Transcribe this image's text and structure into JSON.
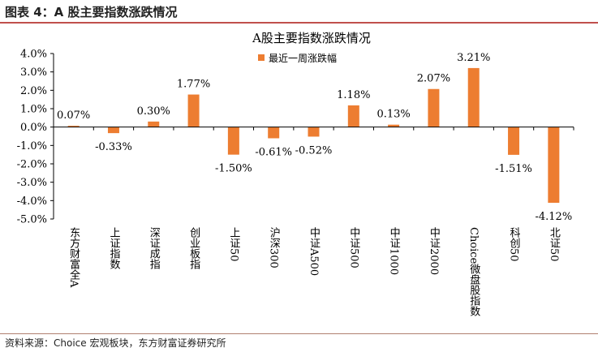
{
  "figure": {
    "caption": "图表 4：A 股主要指数涨跌情况",
    "source": "资料来源：Choice 宏观板块，东方财富证券研究所"
  },
  "colors": {
    "bar": "#ED7D31",
    "accent_rule": "#c0504d",
    "axis": "#000000"
  },
  "chart_data": {
    "type": "bar",
    "title": "A股主要指数涨跌情况",
    "legend": {
      "position": "top-center",
      "entries": [
        "最近一周涨跌幅"
      ]
    },
    "categories": [
      "东方财富全A",
      "上证指数",
      "深证成指",
      "创业板指",
      "上证50",
      "沪深300",
      "中证A500",
      "中证500",
      "中证1000",
      "中证2000",
      "Choice微盘股指数",
      "科创50",
      "北证50"
    ],
    "series": [
      {
        "name": "最近一周涨跌幅",
        "values": [
          0.07,
          -0.33,
          0.3,
          1.77,
          -1.5,
          -0.61,
          -0.52,
          1.18,
          0.13,
          2.07,
          3.21,
          -1.51,
          -4.12
        ],
        "labels": [
          "0.07%",
          "-0.33%",
          "0.30%",
          "1.77%",
          "-1.50%",
          "-0.61%",
          "-0.52%",
          "1.18%",
          "0.13%",
          "2.07%",
          "3.21%",
          "-1.51%",
          "-4.12%"
        ]
      }
    ],
    "ylim": [
      -5.0,
      4.0
    ],
    "yticks": [
      4.0,
      3.0,
      2.0,
      1.0,
      0.0,
      -1.0,
      -2.0,
      -3.0,
      -4.0,
      -5.0
    ],
    "ytick_labels": [
      "4.0%",
      "3.0%",
      "2.0%",
      "1.0%",
      "0.0%",
      "-1.0%",
      "-2.0%",
      "-3.0%",
      "-4.0%",
      "-5.0%"
    ],
    "xlabel": "",
    "ylabel": "",
    "grid": false
  }
}
